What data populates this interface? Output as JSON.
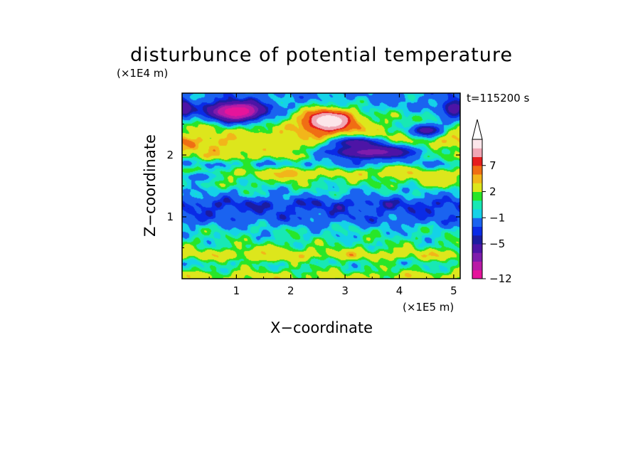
{
  "chart_data": {
    "type": "heatmap",
    "title": "disturbunce of potential temperature",
    "xlabel": "X−coordinate",
    "ylabel": "Z−coordinate",
    "x_unit": "(×1E5 m)",
    "y_unit": "(×1E4 m)",
    "time_label": "t=115200 s",
    "xlim": [
      0,
      5.12
    ],
    "ylim": [
      0,
      3.0
    ],
    "x_ticks": [
      1,
      2,
      3,
      4,
      5
    ],
    "y_ticks": [
      1,
      2
    ],
    "x_tick_labels": [
      "1",
      "2",
      "3",
      "4",
      "5"
    ],
    "y_tick_labels": [
      "1",
      "2"
    ],
    "colorbar": {
      "levels": [
        -12,
        -10,
        -8,
        -7,
        -5,
        -4,
        -3,
        -1,
        0,
        1,
        2,
        4,
        5,
        7,
        8,
        10
      ],
      "labeled_levels": [
        -12,
        -5,
        -1,
        2,
        7
      ],
      "labels": [
        "−12",
        "−5",
        "−1",
        "2",
        "7"
      ],
      "extend": "max",
      "colors": [
        "#e6149b",
        "#b91aa6",
        "#7e1cac",
        "#4d14a6",
        "#1c1ca0",
        "#0a2be6",
        "#1a63f0",
        "#14d2e8",
        "#18e8b4",
        "#28e628",
        "#dde61c",
        "#f2b51a",
        "#f06e14",
        "#e61e1e",
        "#f0a6b4",
        "#fce6ea"
      ]
    },
    "bands": [
      {
        "z": 0.05,
        "value": 2.5
      },
      {
        "z": 0.15,
        "value": 1.0
      },
      {
        "z": 0.25,
        "value": 0.5
      },
      {
        "z": 0.38,
        "value": 3.0
      },
      {
        "z": 0.55,
        "value": 0.8
      },
      {
        "z": 0.75,
        "value": 0.0
      },
      {
        "z": 1.0,
        "value": -2.5
      },
      {
        "z": 1.2,
        "value": -3.5
      },
      {
        "z": 1.4,
        "value": -0.5
      },
      {
        "z": 1.55,
        "value": 1.0
      },
      {
        "z": 1.7,
        "value": 2.5
      },
      {
        "z": 1.85,
        "value": -0.5
      },
      {
        "z": 2.0,
        "value": 3.0
      },
      {
        "z": 2.2,
        "value": 4.5
      },
      {
        "z": 2.4,
        "value": 2.5
      },
      {
        "z": 2.6,
        "value": 1.0
      },
      {
        "z": 2.8,
        "value": -1.0
      },
      {
        "z": 3.0,
        "value": -1.5
      }
    ],
    "features": [
      {
        "x": 1.0,
        "z": 2.7,
        "sx": 0.55,
        "sz": 0.17,
        "value": -12
      },
      {
        "x": 0.05,
        "z": 2.75,
        "sx": 0.15,
        "sz": 0.15,
        "value": -7
      },
      {
        "x": 2.7,
        "z": 2.55,
        "sx": 0.5,
        "sz": 0.2,
        "value": 12
      },
      {
        "x": 3.5,
        "z": 2.05,
        "sx": 1.0,
        "sz": 0.15,
        "value": -8
      },
      {
        "x": 3.2,
        "z": 2.2,
        "sx": 0.5,
        "sz": 0.1,
        "value": -6
      },
      {
        "x": 4.5,
        "z": 2.4,
        "sx": 0.35,
        "sz": 0.12,
        "value": -6
      },
      {
        "x": 5.0,
        "z": 2.75,
        "sx": 0.25,
        "sz": 0.18,
        "value": -6
      },
      {
        "x": 3.95,
        "z": 1.75,
        "sx": 0.3,
        "sz": 0.1,
        "value": 4
      },
      {
        "x": 1.4,
        "z": 2.2,
        "sx": 0.6,
        "sz": 0.15,
        "value": 3
      },
      {
        "x": 0.3,
        "z": 1.65,
        "sx": 0.4,
        "sz": 0.1,
        "value": -2
      },
      {
        "x": 2.0,
        "z": 1.7,
        "sx": 0.25,
        "sz": 0.1,
        "value": 5
      },
      {
        "x": 4.7,
        "z": 1.6,
        "sx": 0.35,
        "sz": 0.12,
        "value": 4
      },
      {
        "x": 1.6,
        "z": 0.4,
        "sx": 0.4,
        "sz": 0.12,
        "value": 4
      }
    ]
  }
}
